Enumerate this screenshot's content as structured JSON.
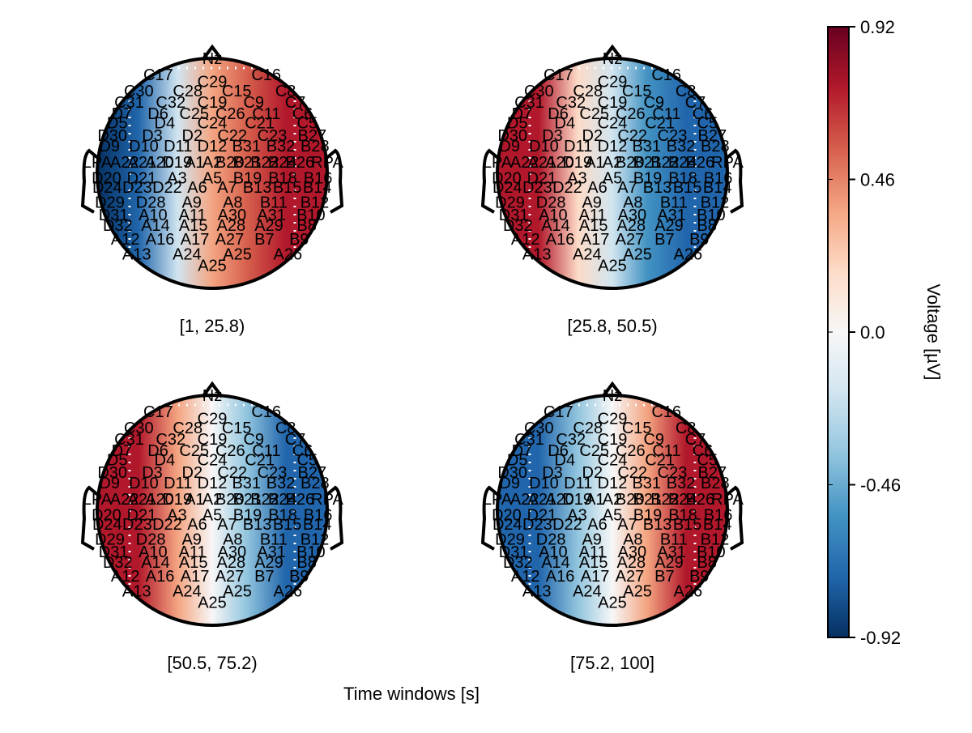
{
  "chart_data": {
    "type": "heatmap",
    "subtype": "topoplot",
    "xlabel": "Time windows [s]",
    "panels": [
      {
        "title": "[1, 25.8)",
        "pattern": [
          -0.85,
          0.3,
          0.75
        ]
      },
      {
        "title": "[25.8, 50.5)",
        "pattern": [
          0.8,
          -0.25,
          -0.8
        ]
      },
      {
        "title": "[50.5, 75.2)",
        "pattern": [
          0.8,
          0.05,
          -0.7
        ]
      },
      {
        "title": "[75.2, 100]",
        "pattern": [
          -0.8,
          0.05,
          0.8
        ]
      }
    ],
    "pattern_note_x_positions": "left, center, right",
    "colorbar": {
      "label": "Voltage [µV]",
      "range": [
        -0.92,
        0.92
      ],
      "ticks": [
        "-0.92",
        "-0.46",
        "0.0",
        "0.46",
        "0.92"
      ],
      "colormap": "RdBu_r",
      "colors": [
        "#053061",
        "#2166ac",
        "#4393c3",
        "#92c5de",
        "#d1e5f0",
        "#f7f7f7",
        "#fddbc7",
        "#f4a582",
        "#d6604d",
        "#b2182b",
        "#67001f"
      ]
    },
    "channels": [
      "Nz",
      "C17",
      "C16",
      "C29",
      "C30",
      "C28",
      "C15",
      "C8",
      "C31",
      "C32",
      "C19",
      "C9",
      "C7",
      "D7",
      "D6",
      "C25",
      "C26",
      "C11",
      "C6",
      "D5",
      "D4",
      "C24",
      "C21",
      "C5",
      "D30",
      "D3",
      "D2",
      "C22",
      "C23",
      "B27",
      "D9",
      "D10",
      "D11",
      "D12",
      "B31",
      "B32",
      "B28",
      "LPA",
      "A22",
      "A21",
      "A20",
      "D19",
      "A1",
      "A2",
      "B20",
      "B21",
      "B22",
      "B24",
      "B26",
      "RPA",
      "D20",
      "D21",
      "A3",
      "A5",
      "B19",
      "B18",
      "B16",
      "D24",
      "D23",
      "D22",
      "A6",
      "A7",
      "B13",
      "B15",
      "B14",
      "D29",
      "D28",
      "A9",
      "A8",
      "B11",
      "B12",
      "D31",
      "A10",
      "A11",
      "A30",
      "A31",
      "B10",
      "D32",
      "A14",
      "A15",
      "A28",
      "A29",
      "B8",
      "A12",
      "A16",
      "A17",
      "A27",
      "B7",
      "B9",
      "A13",
      "A24",
      "A25",
      "A26"
    ]
  }
}
